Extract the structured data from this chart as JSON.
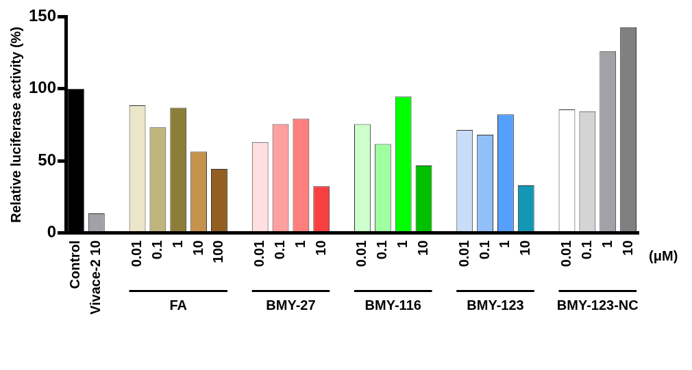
{
  "chart_data": {
    "type": "bar",
    "ylabel": "Relative luciferase activity (%)",
    "categories": [
      "Control",
      "Vivace-2 10",
      null,
      "0.01",
      "0.1",
      "1",
      "10",
      "100",
      null,
      "0.01",
      "0.1",
      "1",
      "10",
      null,
      "0.01",
      "0.1",
      "1",
      "10",
      null,
      "0.01",
      "0.1",
      "1",
      "10",
      null,
      "0.01",
      "0.1",
      "1",
      "10"
    ],
    "values": [
      100,
      13.5,
      null,
      88.5,
      73.2,
      86.8,
      56.4,
      44.3,
      null,
      63,
      75.4,
      79.2,
      32.3,
      null,
      75.4,
      61.6,
      94.5,
      46.7,
      null,
      71.4,
      68.1,
      82.2,
      32.9,
      null,
      85.6,
      84.3,
      126.1,
      142.7
    ],
    "colors": [
      "#000000",
      "#a2a1a6",
      "#ffffff",
      "#ebe6c8",
      "#c0b57c",
      "#8c7d38",
      "#c5924e",
      "#925f20",
      "#ffffff",
      "#ffdfe0",
      "#ffa0a0",
      "#ff7f7f",
      "#f94040",
      "#ffffff",
      "#ccffcc",
      "#a0ffa0",
      "#00ff00",
      "#00c000",
      "#ffffff",
      "#c8ddf7",
      "#91bff8",
      "#55a0fd",
      "#1298b5",
      "#ffffff",
      "#ffffff",
      "#d4d4d4",
      "#a2a1a6",
      "#808080"
    ],
    "ylim": [
      0,
      150
    ],
    "yticks": [
      0,
      50,
      100,
      150
    ],
    "grid": false,
    "legend": false,
    "annotations": [
      "FA",
      "BMY-27",
      "BMY-116",
      "BMY-123",
      "BMY-123-NC",
      "(μM)"
    ]
  }
}
